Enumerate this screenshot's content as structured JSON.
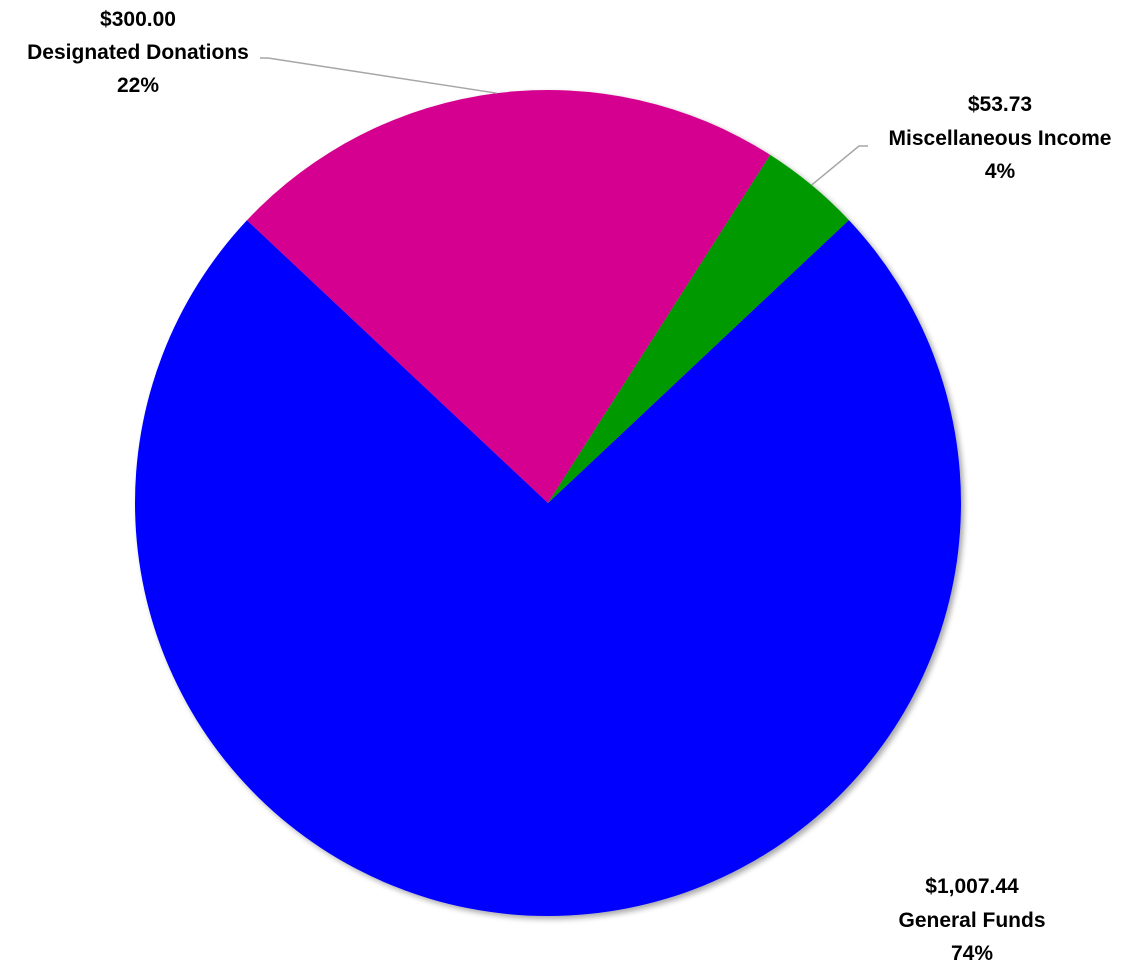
{
  "chart_data": {
    "type": "pie",
    "slices": [
      {
        "label": "General Funds",
        "value": 1007.44,
        "value_label": "$1,007.44",
        "percent_label": "74%",
        "color": "#0000ff"
      },
      {
        "label": "Designated Donations",
        "value": 300.0,
        "value_label": "$300.00",
        "percent_label": "22%",
        "color": "#d5008f"
      },
      {
        "label": "Miscellaneous Income",
        "value": 53.73,
        "value_label": "$53.73",
        "percent_label": "4%",
        "color": "#009900"
      }
    ],
    "legend": "none",
    "data_labels": "outside-with-leader-lines"
  }
}
